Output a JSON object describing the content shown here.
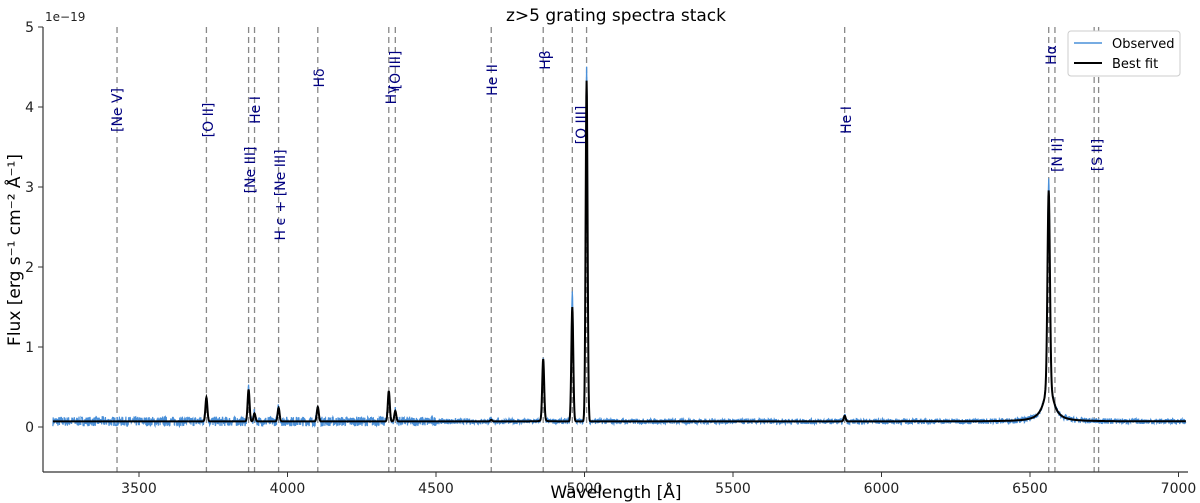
{
  "chart_data": {
    "type": "line",
    "title": "z>5 grating spectra stack",
    "xlabel": "Wavelength [Å]",
    "ylabel": "Flux  [erg s⁻¹ cm⁻² Å⁻¹]",
    "y_scale_label": "1e−19",
    "xlim": [
      3200,
      7030
    ],
    "ylim": [
      -0.6,
      5
    ],
    "x_ticks": [
      3500,
      4000,
      4500,
      5000,
      5500,
      6000,
      6500,
      7000
    ],
    "y_ticks": [
      0,
      1,
      2,
      3,
      4,
      5
    ],
    "grid": false,
    "legend_position": "upper right",
    "legend": [
      {
        "label": "Observed",
        "color": "#4a90d9"
      },
      {
        "label": "Best fit",
        "color": "#000000"
      }
    ],
    "continuum_level": 0.07,
    "series": [
      {
        "name": "Best fit",
        "color": "#000000",
        "peaks": [
          {
            "line": "[O II]",
            "wavelength": 3727,
            "peak": 0.37
          },
          {
            "line": "[Ne III]",
            "wavelength": 3869,
            "peak": 0.47
          },
          {
            "line": "He I",
            "wavelength": 3889,
            "peak": 0.17
          },
          {
            "line": "H ϵ + [Ne III]",
            "wavelength": 3970,
            "peak": 0.24
          },
          {
            "line": "Hδ",
            "wavelength": 4102,
            "peak": 0.25
          },
          {
            "line": "Hγ",
            "wavelength": 4341,
            "peak": 0.45
          },
          {
            "line": "[O III]",
            "wavelength": 4363,
            "peak": 0.2
          },
          {
            "line": "He II",
            "wavelength": 4686,
            "peak": 0.09
          },
          {
            "line": "Hβ",
            "wavelength": 4861,
            "peak": 0.83
          },
          {
            "line": "[O III]",
            "wavelength": 4959,
            "peak": 1.5
          },
          {
            "line": "[O III]",
            "wavelength": 5007,
            "peak": 4.33
          },
          {
            "line": "He I",
            "wavelength": 5876,
            "peak": 0.14
          },
          {
            "line": "Hα",
            "wavelength": 6563,
            "peak": 2.48,
            "broad_wing": 0.6
          }
        ]
      },
      {
        "name": "Observed",
        "color": "#4a90d9",
        "peaks": [
          {
            "line": "[O III]",
            "wavelength": 4959,
            "peak": 1.7
          },
          {
            "line": "[O III]",
            "wavelength": 5007,
            "peak": 4.5
          },
          {
            "line": "Hα",
            "wavelength": 6563,
            "peak": 2.6
          }
        ],
        "noise_amplitude": 0.05
      }
    ],
    "emission_lines": [
      {
        "label": "[Ne V]",
        "wavelength": 3426
      },
      {
        "label": "[O II]",
        "wavelength": 3727
      },
      {
        "label": "[Ne III]",
        "wavelength": 3869
      },
      {
        "label": "He I",
        "wavelength": 3889
      },
      {
        "label": "H ϵ + [Ne III]",
        "wavelength": 3970
      },
      {
        "label": "Hδ",
        "wavelength": 4102
      },
      {
        "label": "Hγ",
        "wavelength": 4341
      },
      {
        "label": "[O III]",
        "wavelength": 4363
      },
      {
        "label": "He II",
        "wavelength": 4686
      },
      {
        "label": "Hβ",
        "wavelength": 4861
      },
      {
        "label": "[O III]",
        "wavelength": 4959,
        "show_label": false
      },
      {
        "label": "[O III]",
        "wavelength": 5007
      },
      {
        "label": "He I",
        "wavelength": 5876
      },
      {
        "label": "Hα",
        "wavelength": 6563
      },
      {
        "label": "[N II]",
        "wavelength": 6584
      },
      {
        "label": "[S II]",
        "wavelength": 6716
      },
      {
        "label": "[S II]",
        "wavelength": 6731,
        "show_label": false
      }
    ]
  }
}
